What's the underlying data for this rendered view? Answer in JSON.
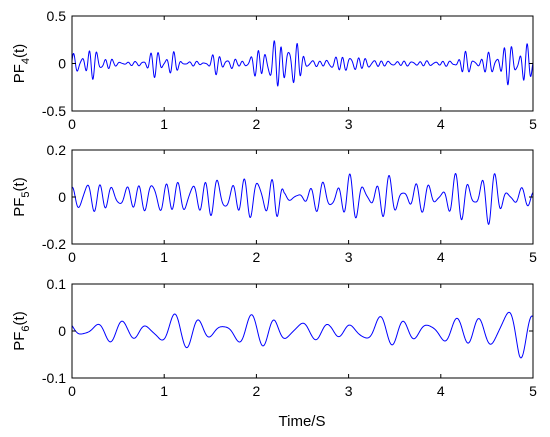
{
  "chart_data": [
    {
      "type": "line",
      "ylabel": {
        "base": "PF",
        "sub": "4",
        "rest": "(t)"
      },
      "xlim": [
        0,
        5
      ],
      "ylim": [
        -0.5,
        0.5
      ],
      "xticks": [
        0,
        1,
        2,
        3,
        4,
        5
      ],
      "xtick_labels": [
        "0",
        "1",
        "2",
        "3",
        "4",
        "5"
      ],
      "yticks": [
        -0.5,
        0,
        0.5
      ],
      "ytick_labels": [
        "-0.5",
        "0",
        "0.5"
      ],
      "color": "#0000ff",
      "freq_hz": 12,
      "envelope": [
        [
          0,
          0.1
        ],
        [
          0.2,
          0.17
        ],
        [
          0.35,
          0.12
        ],
        [
          0.45,
          0.03
        ],
        [
          0.7,
          0.02
        ],
        [
          0.8,
          0.1
        ],
        [
          0.95,
          0.16
        ],
        [
          1.1,
          0.12
        ],
        [
          1.2,
          0.03
        ],
        [
          1.45,
          0.02
        ],
        [
          1.55,
          0.12
        ],
        [
          1.7,
          0.08
        ],
        [
          1.8,
          0.03
        ],
        [
          1.9,
          0.07
        ],
        [
          2.05,
          0.18
        ],
        [
          2.2,
          0.26
        ],
        [
          2.3,
          0.27
        ],
        [
          2.45,
          0.23
        ],
        [
          2.55,
          0.05
        ],
        [
          2.7,
          0.03
        ],
        [
          2.85,
          0.08
        ],
        [
          3.0,
          0.1
        ],
        [
          3.2,
          0.06
        ],
        [
          3.4,
          0.03
        ],
        [
          3.8,
          0.03
        ],
        [
          4.15,
          0.03
        ],
        [
          4.25,
          0.15
        ],
        [
          4.35,
          0.05
        ],
        [
          4.45,
          0.08
        ],
        [
          4.6,
          0.16
        ],
        [
          4.8,
          0.24
        ],
        [
          4.9,
          0.24
        ],
        [
          5.0,
          0.12
        ]
      ]
    },
    {
      "type": "line",
      "ylabel": {
        "base": "PF",
        "sub": "5",
        "rest": "(t)"
      },
      "xlim": [
        0,
        5
      ],
      "ylim": [
        -0.2,
        0.2
      ],
      "xticks": [
        0,
        1,
        2,
        3,
        4,
        5
      ],
      "xtick_labels": [
        "0",
        "1",
        "2",
        "3",
        "4",
        "5"
      ],
      "yticks": [
        -0.2,
        0,
        0.2
      ],
      "ytick_labels": [
        "-0.2",
        "0",
        "0.2"
      ],
      "color": "#0000ff",
      "freq_hz": 7,
      "envelope": [
        [
          0,
          0.06
        ],
        [
          0.1,
          0.08
        ],
        [
          0.3,
          0.07
        ],
        [
          0.5,
          0.05
        ],
        [
          0.7,
          0.06
        ],
        [
          0.9,
          0.09
        ],
        [
          1.1,
          0.07
        ],
        [
          1.3,
          0.08
        ],
        [
          1.5,
          0.09
        ],
        [
          1.7,
          0.08
        ],
        [
          1.9,
          0.09
        ],
        [
          2.05,
          0.11
        ],
        [
          2.2,
          0.13
        ],
        [
          2.3,
          0.02
        ],
        [
          2.45,
          0.02
        ],
        [
          2.6,
          0.05
        ],
        [
          2.8,
          0.09
        ],
        [
          3.0,
          0.1
        ],
        [
          3.2,
          0.08
        ],
        [
          3.4,
          0.09
        ],
        [
          3.6,
          0.08
        ],
        [
          3.8,
          0.06
        ],
        [
          4.0,
          0.07
        ],
        [
          4.2,
          0.1
        ],
        [
          4.35,
          0.13
        ],
        [
          4.5,
          0.12
        ],
        [
          4.7,
          0.07
        ],
        [
          4.9,
          0.04
        ],
        [
          5.0,
          0.03
        ]
      ]
    },
    {
      "type": "line",
      "ylabel": {
        "base": "PF",
        "sub": "6",
        "rest": "(t)"
      },
      "xlim": [
        0,
        5
      ],
      "ylim": [
        -0.1,
        0.1
      ],
      "xticks": [
        0,
        1,
        2,
        3,
        4,
        5
      ],
      "xtick_labels": [
        "0",
        "1",
        "2",
        "3",
        "4",
        "5"
      ],
      "yticks": [
        -0.1,
        0,
        0.1
      ],
      "ytick_labels": [
        "-0.1",
        "0",
        "0.1"
      ],
      "color": "#0000ff",
      "freq_hz": 3.6,
      "envelope": [
        [
          0,
          0.035
        ],
        [
          0.3,
          0.025
        ],
        [
          0.6,
          0.02
        ],
        [
          0.8,
          0.035
        ],
        [
          0.95,
          0.05
        ],
        [
          1.2,
          0.035
        ],
        [
          1.5,
          0.03
        ],
        [
          1.8,
          0.03
        ],
        [
          2.0,
          0.035
        ],
        [
          2.2,
          0.045
        ],
        [
          2.4,
          0.035
        ],
        [
          2.6,
          0.02
        ],
        [
          2.8,
          0.015
        ],
        [
          3.0,
          0.025
        ],
        [
          3.3,
          0.035
        ],
        [
          3.6,
          0.03
        ],
        [
          3.9,
          0.025
        ],
        [
          4.2,
          0.03
        ],
        [
          4.5,
          0.045
        ],
        [
          4.7,
          0.06
        ],
        [
          4.85,
          0.07
        ],
        [
          5.0,
          0.04
        ]
      ]
    }
  ],
  "xlabel": "Time/S"
}
